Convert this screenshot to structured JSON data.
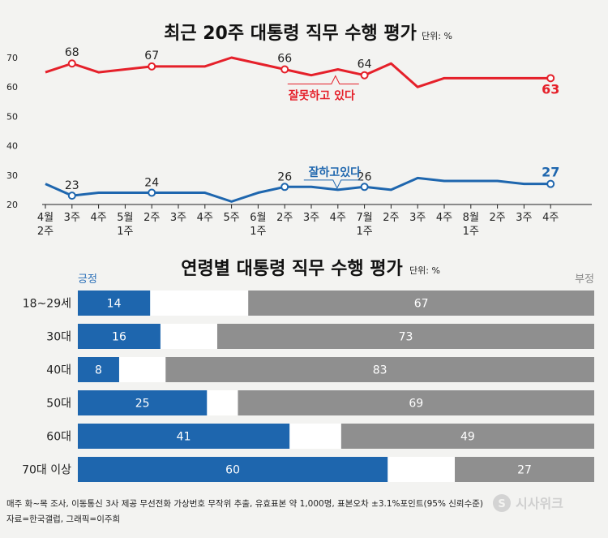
{
  "chart_data": [
    {
      "type": "line",
      "title": "최근 20주 대통령 직무 수행 평가",
      "unit": "단위: %",
      "ylim": [
        20,
        72
      ],
      "yticks": [
        20,
        30,
        40,
        50,
        60,
        70
      ],
      "x_labels": [
        [
          "4월",
          "2주"
        ],
        [
          "3주"
        ],
        [
          "4주"
        ],
        [
          "5월",
          "1주"
        ],
        [
          "2주"
        ],
        [
          "3주"
        ],
        [
          "4주"
        ],
        [
          "5주"
        ],
        [
          "6월",
          "1주"
        ],
        [
          "2주"
        ],
        [
          "3주"
        ],
        [
          "4주"
        ],
        [
          "7월",
          "1주"
        ],
        [
          "2주"
        ],
        [
          "3주"
        ],
        [
          "4주"
        ],
        [
          "8월",
          "1주"
        ],
        [
          "2주"
        ],
        [
          "3주"
        ],
        [
          "4주"
        ]
      ],
      "series": [
        {
          "name": "잘못하고 있다",
          "color": "#e5202a",
          "values": [
            65,
            68,
            65,
            66,
            67,
            67,
            67,
            70,
            68,
            66,
            64,
            66,
            64,
            68,
            60,
            63,
            63,
            63,
            63,
            63
          ],
          "labeled_points": [
            1,
            4,
            9,
            12,
            19
          ],
          "end_value": "63"
        },
        {
          "name": "잘하고있다",
          "color": "#1e66ae",
          "values": [
            27,
            23,
            24,
            24,
            24,
            24,
            24,
            21,
            24,
            26,
            26,
            25,
            26,
            25,
            29,
            28,
            28,
            28,
            27,
            27
          ],
          "labeled_points": [
            1,
            4,
            9,
            12,
            19
          ],
          "end_value": "27"
        }
      ],
      "grid": false
    },
    {
      "type": "bar",
      "orientation": "horizontal-stacked",
      "title": "연령별 대통령 직무 수행 평가",
      "unit": "단위: %",
      "left_header": "긍정",
      "right_header": "부정",
      "categories": [
        "18~29세",
        "30대",
        "40대",
        "50대",
        "60대",
        "70대 이상"
      ],
      "series": [
        {
          "name": "긍정",
          "color": "#1e66ae",
          "values": [
            14,
            16,
            8,
            25,
            41,
            60
          ]
        },
        {
          "name": "부정",
          "color": "#8f8f8f",
          "values": [
            67,
            73,
            83,
            69,
            49,
            27
          ]
        }
      ]
    }
  ],
  "footnote": [
    "매주 화~목 조사, 이동통신 3사 제공 무선전화 가상번호 무작위 추출, 유효표본 약 1,000명, 표본오차 ±3.1%포인트(95% 신뢰수준)",
    "자료=한국갤럽, 그래픽=이주희"
  ],
  "logo_text": "시사위크"
}
